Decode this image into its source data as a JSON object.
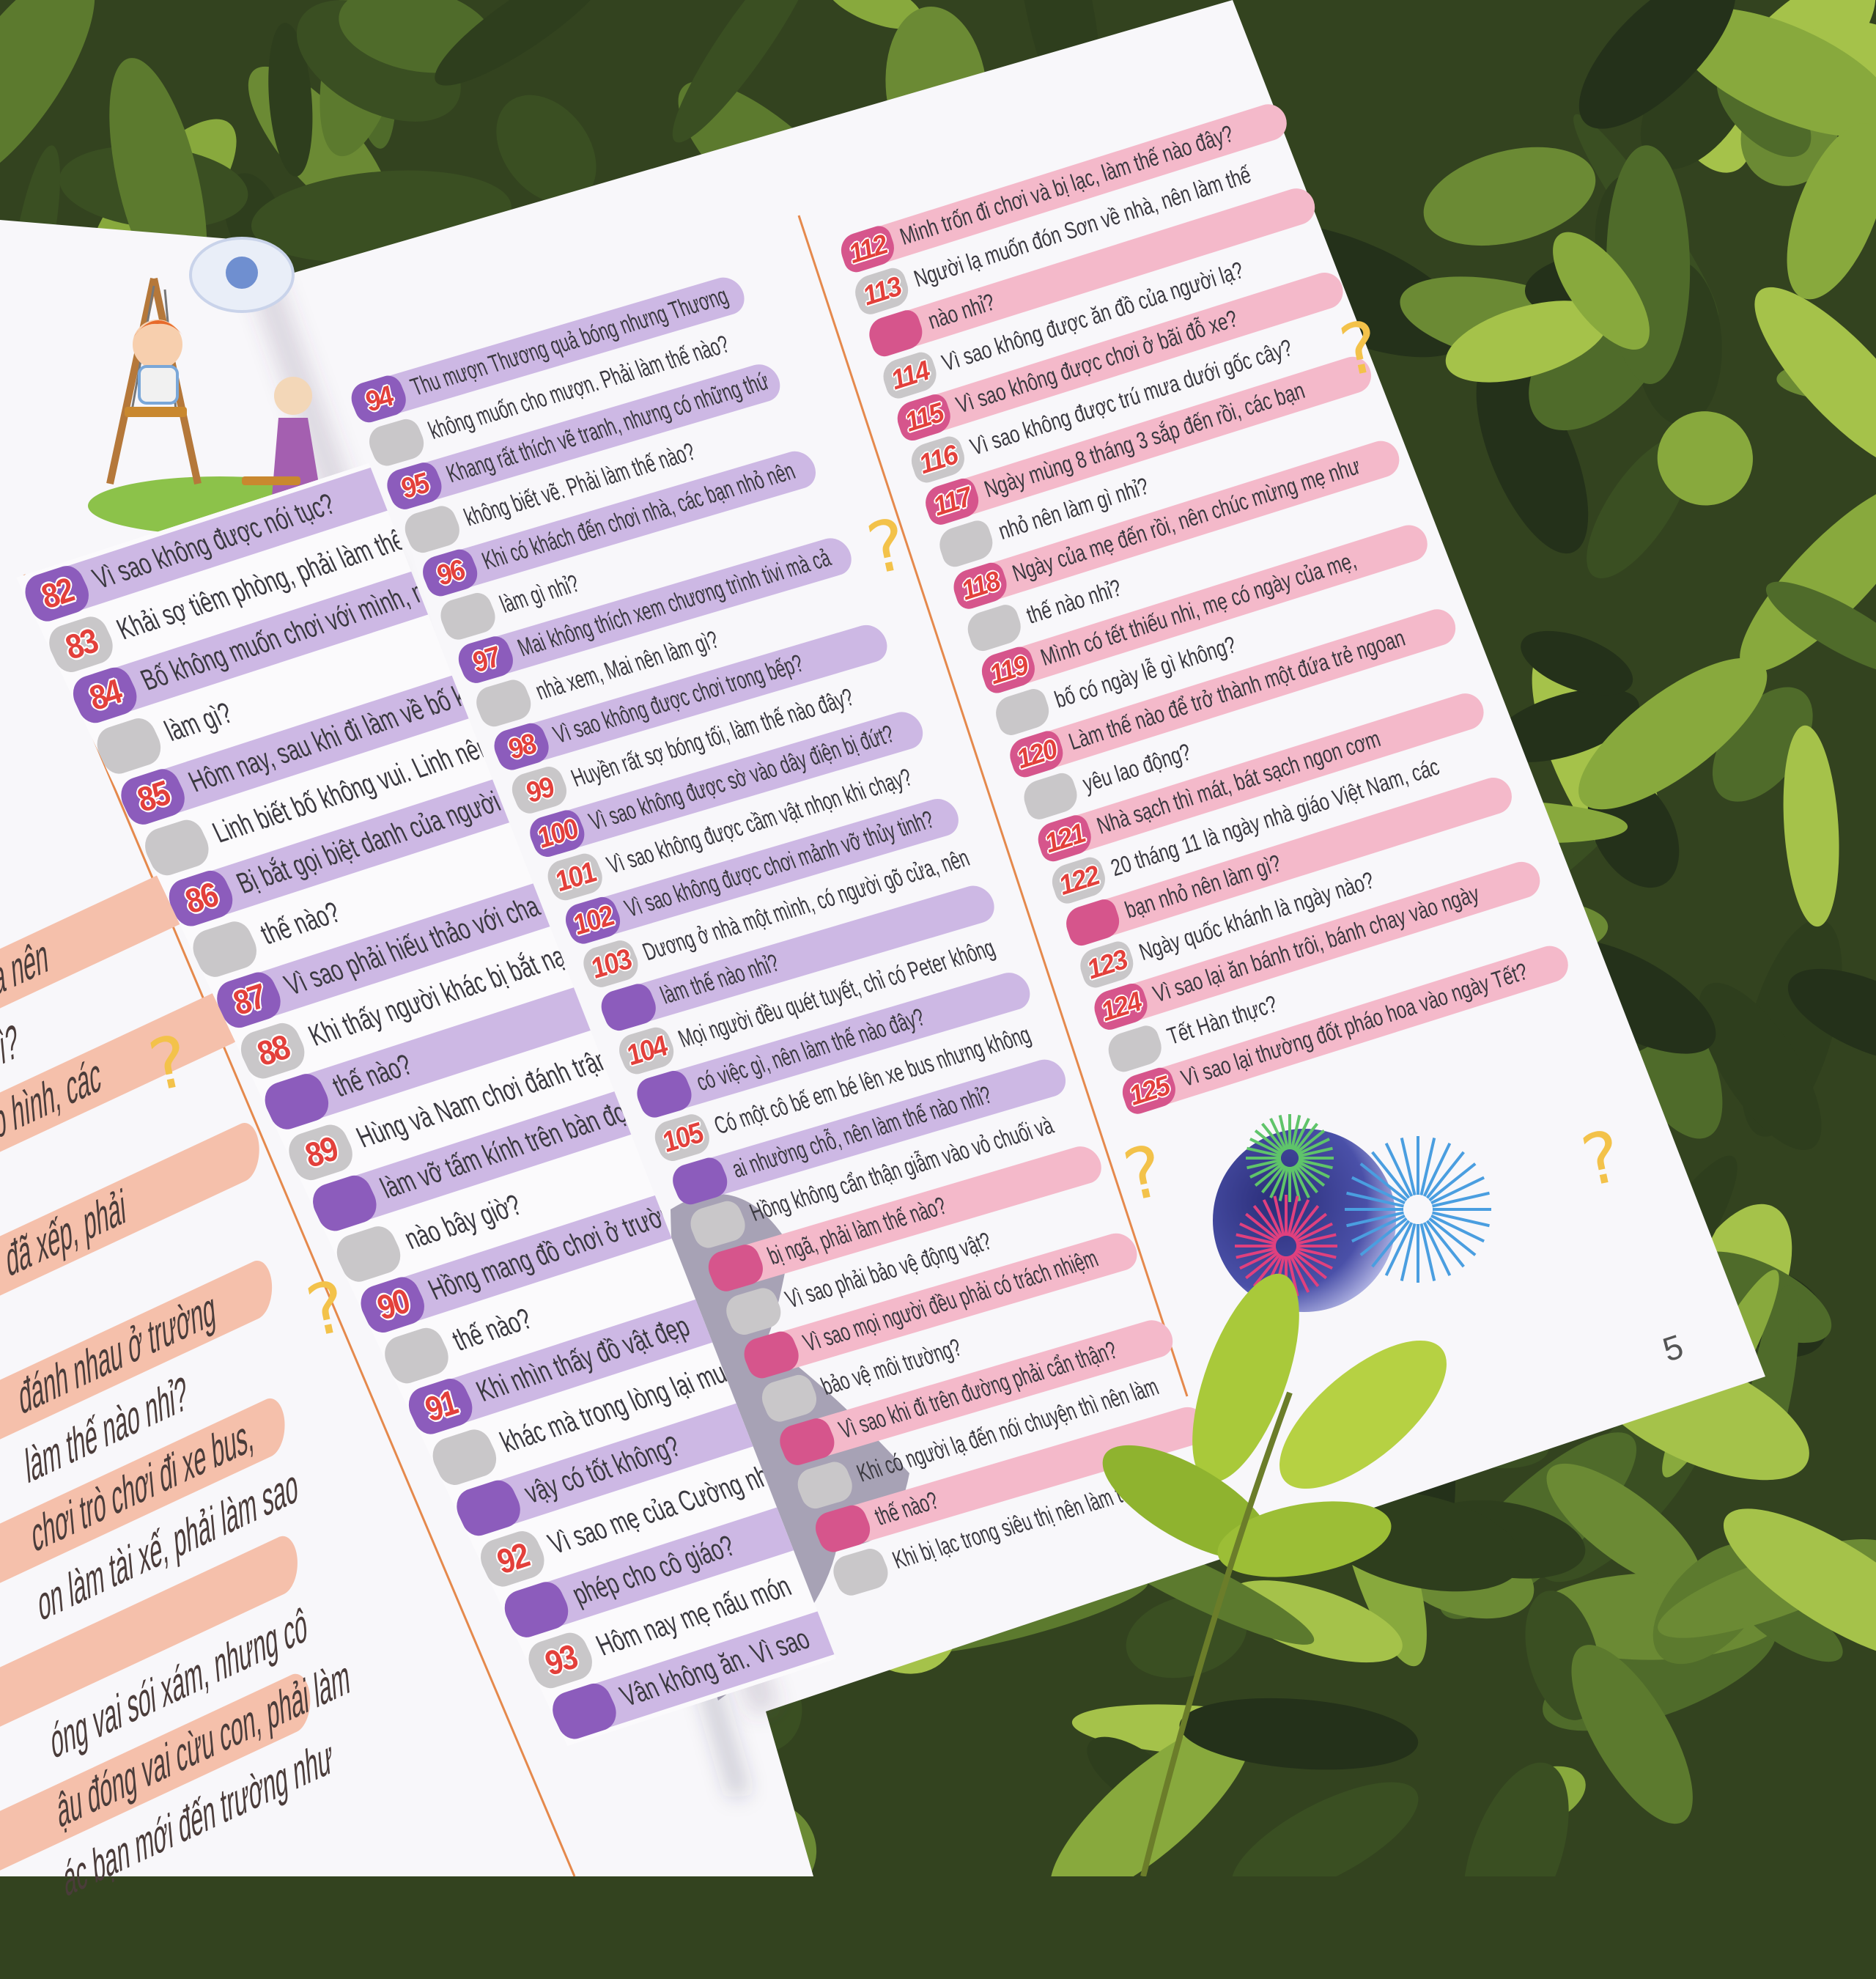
{
  "colors": {
    "purple_pill": "#cdb8e4",
    "purple_badge": "#8c5cbc",
    "pink_pill": "#f4b9ca",
    "pink_badge": "#d6558c",
    "gray_badge": "#c9c7c9",
    "number": "#e3403b",
    "peach_pill": "#f5c0ab",
    "page_rule": "#e5894c",
    "question_mark": "#f3c24a"
  },
  "decor": {
    "question_mark": "?"
  },
  "page_number": "5",
  "columns": {
    "peach": {
      "lines": [
        "ua nên",
        "hì?",
        "p hình, các",
        "",
        "đã xếp, phải",
        "",
        "đánh nhau ở trường",
        "làm thế nào nhỉ?",
        "chơi trò chơi đi xe bus,",
        "on làm tài xế, phải làm sao",
        "",
        "óng vai sói xám, nhưng cô",
        "ậu đóng vai cừu con, phải làm",
        "ác bạn mới đến trường như"
      ]
    },
    "left": {
      "items": [
        {
          "number": "82",
          "theme": "purple",
          "lines": [
            "Vì sao không được nói tục?"
          ]
        },
        {
          "number": "83",
          "theme": "purple",
          "lines": [
            "Khải sợ tiêm phòng, phải làm thế nà"
          ]
        },
        {
          "number": "84",
          "theme": "purple",
          "lines": [
            "Bố không muốn chơi với mình, mình",
            "làm gì?"
          ]
        },
        {
          "number": "85",
          "theme": "purple",
          "lines": [
            "Hôm nay, sau khi đi làm về bố không",
            "Linh biết bố không vui. Linh nên làm"
          ]
        },
        {
          "number": "86",
          "theme": "purple",
          "lines": [
            "Bị bắt gọi biệt danh của người khác",
            "thế nào?"
          ]
        },
        {
          "number": "87",
          "theme": "purple",
          "lines": [
            "Vì sao phải hiếu thảo với cha mẹ?"
          ]
        },
        {
          "number": "88",
          "theme": "purple",
          "lines": [
            "Khi thấy người khác bị bắt nạt",
            "thế nào?"
          ]
        },
        {
          "number": "89",
          "theme": "purple",
          "lines": [
            "Hùng và Nam chơi đánh trận",
            "làm vỡ tấm kính trên bàn đọc",
            "nào bây giờ?"
          ]
        },
        {
          "number": "90",
          "theme": "purple",
          "lines": [
            "Hồng mang đồ chơi ở trường",
            "thế nào?"
          ]
        },
        {
          "number": "91",
          "theme": "purple",
          "lines": [
            "Khi nhìn thấy đồ vật đẹp",
            "khác mà trong lòng lại muốn",
            "vậy có tốt không?"
          ]
        },
        {
          "number": "92",
          "theme": "purple",
          "lines": [
            "Vì sao mẹ của Cường nhờ",
            "phép cho cô giáo?"
          ]
        },
        {
          "number": "93",
          "theme": "purple",
          "lines": [
            "Hôm nay mẹ nấu món",
            "Vân không ăn. Vì sao"
          ]
        }
      ]
    },
    "middle": {
      "items": [
        {
          "number": "94",
          "theme": "purple",
          "lines": [
            "Thu mượn Thương quả bóng nhưng Thương",
            "không muốn cho mượn. Phải làm thế nào?"
          ]
        },
        {
          "number": "95",
          "theme": "purple",
          "lines": [
            "Khang rất thích vẽ tranh, nhưng có những thứ",
            "không biết vẽ. Phải làm thế nào?"
          ]
        },
        {
          "number": "96",
          "theme": "purple",
          "lines": [
            "Khi có khách đến chơi nhà, các bạn nhỏ nên",
            "làm gì nhỉ?"
          ]
        },
        {
          "number": "97",
          "theme": "purple",
          "lines": [
            "Mai không thích xem chương trình tivi mà cả",
            "nhà xem, Mai nên làm gì?"
          ]
        },
        {
          "number": "98",
          "theme": "purple",
          "lines": [
            "Vì sao không được chơi trong bếp?"
          ]
        },
        {
          "number": "99",
          "theme": "purple",
          "lines": [
            "Huyền rất sợ bóng tối, làm thế nào đây?"
          ]
        },
        {
          "number": "100",
          "theme": "purple",
          "lines": [
            "Vì sao không được sờ vào dây điện bị đứt?"
          ]
        },
        {
          "number": "101",
          "theme": "purple",
          "lines": [
            "Vì sao không được cầm vật nhọn khi chạy?"
          ]
        },
        {
          "number": "102",
          "theme": "purple",
          "lines": [
            "Vì sao không được chơi mảnh vỡ thủy tinh?"
          ]
        },
        {
          "number": "103",
          "theme": "purple",
          "lines": [
            "Dương ở nhà một mình, có người gõ cửa, nên",
            "làm thế nào nhỉ?"
          ]
        },
        {
          "number": "104",
          "theme": "purple",
          "lines": [
            "Mọi người đều quét tuyết, chỉ có Peter không",
            "có việc gì, nên làm thế nào đây?"
          ]
        },
        {
          "number": "105",
          "theme": "purple",
          "lines": [
            "Có một cô bế em bé lên xe bus nhưng không",
            "ai nhường chỗ, nên làm thế nào nhỉ?"
          ]
        },
        {
          "number": "",
          "theme": "pink",
          "lines": [
            "Hồng không cẩn thận giẫm vào vỏ chuối và",
            "bị ngã, phải làm thế nào?"
          ]
        },
        {
          "number": "",
          "theme": "pink",
          "lines": [
            "Vì sao phải bảo vệ động vật?"
          ]
        },
        {
          "number": "",
          "theme": "pink",
          "lines": [
            "Vì sao mọi người đều phải có trách nhiệm",
            "bảo vệ môi trường?"
          ]
        },
        {
          "number": "",
          "theme": "pink",
          "lines": [
            "Vì sao khi đi trên đường phải cẩn thận?"
          ]
        },
        {
          "number": "",
          "theme": "pink",
          "lines": [
            "Khi có người lạ đến nói chuyện thì nên làm",
            "thế nào?"
          ]
        },
        {
          "number": "",
          "theme": "pink",
          "lines": [
            "Khi bị lạc trong siêu thị nên làm thế nào?"
          ]
        }
      ]
    },
    "right": {
      "items": [
        {
          "number": "112",
          "theme": "pink",
          "lines": [
            "Minh trốn đi chơi và bị lạc, làm thế nào đây?"
          ]
        },
        {
          "number": "113",
          "theme": "pink",
          "lines": [
            "Người lạ muốn đón Sơn về nhà, nên làm thế",
            "nào nhỉ?"
          ]
        },
        {
          "number": "114",
          "theme": "pink",
          "lines": [
            "Vì sao không được ăn đồ của người lạ?"
          ]
        },
        {
          "number": "115",
          "theme": "pink",
          "lines": [
            "Vì sao không được chơi ở bãi đỗ xe?"
          ]
        },
        {
          "number": "116",
          "theme": "pink",
          "lines": [
            "Vì sao không được trú mưa dưới gốc cây?"
          ]
        },
        {
          "number": "117",
          "theme": "pink",
          "lines": [
            "Ngày mùng 8 tháng 3 sắp đến rồi, các bạn",
            "nhỏ nên làm gì nhỉ?"
          ]
        },
        {
          "number": "118",
          "theme": "pink",
          "lines": [
            "Ngày của mẹ đến rồi, nên chúc mừng mẹ như",
            "thế nào nhỉ?"
          ]
        },
        {
          "number": "119",
          "theme": "pink",
          "lines": [
            "Mình có tết thiếu nhi,  mẹ có ngày của mẹ,",
            "bố có ngày lễ gì không?"
          ]
        },
        {
          "number": "120",
          "theme": "pink",
          "lines": [
            "Làm thế nào để trở thành một đứa trẻ ngoan",
            "yêu lao động?"
          ]
        },
        {
          "number": "121",
          "theme": "pink",
          "lines": [
            "Nhà sạch thì mát, bát sạch ngon cơm"
          ]
        },
        {
          "number": "122",
          "theme": "pink",
          "lines": [
            "20 tháng 11 là ngày nhà giáo Việt Nam, các",
            "bạn nhỏ nên làm gì?"
          ]
        },
        {
          "number": "123",
          "theme": "pink",
          "lines": [
            "Ngày quốc khánh là ngày nào?"
          ]
        },
        {
          "number": "124",
          "theme": "pink",
          "lines": [
            "Vì sao lại ăn bánh trôi, bánh chay vào ngày",
            "Tết Hàn thực?"
          ]
        },
        {
          "number": "125",
          "theme": "pink",
          "lines": [
            "Vì sao lại thường đốt pháo hoa vào ngày Tết?"
          ]
        }
      ]
    }
  }
}
